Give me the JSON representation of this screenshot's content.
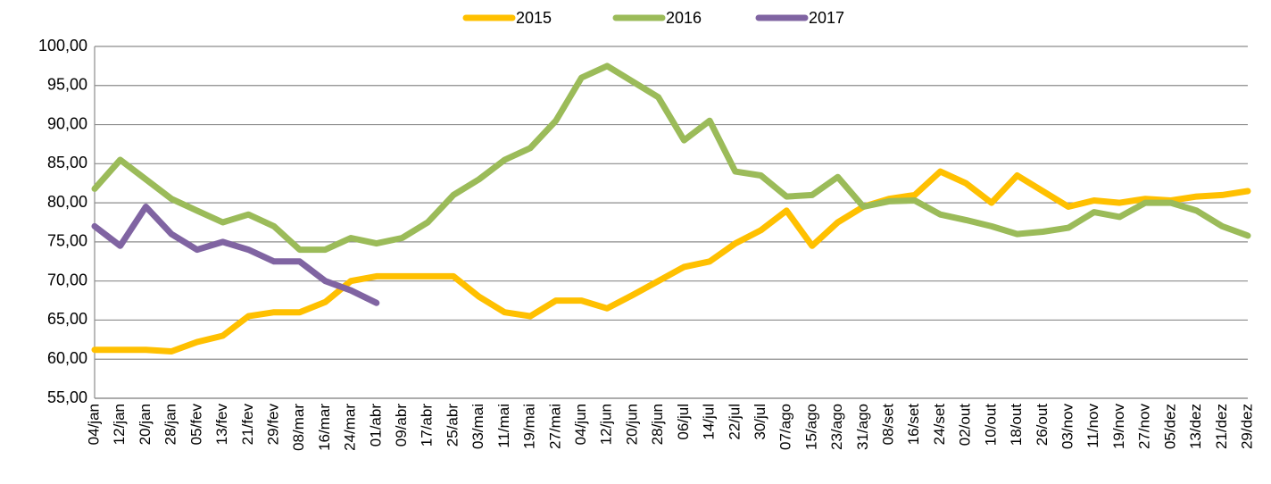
{
  "chart_data": {
    "type": "line",
    "categories": [
      "04/jan",
      "12/jan",
      "20/jan",
      "28/jan",
      "05/fev",
      "13/fev",
      "21/fev",
      "29/fev",
      "08/mar",
      "16/mar",
      "24/mar",
      "01/abr",
      "09/abr",
      "17/abr",
      "25/abr",
      "03/mai",
      "11/mai",
      "19/mai",
      "27/mai",
      "04/jun",
      "12/jun",
      "20/jun",
      "28/jun",
      "06/jul",
      "14/jul",
      "22/jul",
      "30/jul",
      "07/ago",
      "15/ago",
      "23/ago",
      "31/ago",
      "08/set",
      "16/set",
      "24/set",
      "02/out",
      "10/out",
      "18/out",
      "26/out",
      "03/nov",
      "11/nov",
      "19/nov",
      "27/nov",
      "05/dez",
      "13/dez",
      "21/dez",
      "29/dez"
    ],
    "series": [
      {
        "name": "2015",
        "color": "#FFC000",
        "values": [
          61.2,
          61.2,
          61.2,
          61.0,
          62.2,
          63.0,
          65.5,
          66.0,
          66.0,
          67.3,
          70.0,
          70.6,
          70.6,
          70.6,
          70.6,
          68.0,
          66.0,
          65.5,
          67.5,
          67.5,
          66.5,
          68.2,
          70.0,
          71.8,
          72.5,
          74.8,
          76.5,
          79.0,
          74.5,
          77.5,
          79.5,
          80.5,
          81.0,
          84.0,
          82.5,
          80.0,
          83.5,
          81.5,
          79.5,
          80.3,
          80.0,
          80.5,
          80.3,
          80.8,
          81.0,
          81.5
        ]
      },
      {
        "name": "2016",
        "color": "#9BBB59",
        "values": [
          81.8,
          85.5,
          83.0,
          80.5,
          79.0,
          77.5,
          78.5,
          77.0,
          74.0,
          74.0,
          75.5,
          74.8,
          75.5,
          77.5,
          81.0,
          83.0,
          85.5,
          87.0,
          90.5,
          96.0,
          97.5,
          95.5,
          93.5,
          88.0,
          90.5,
          84.0,
          83.5,
          80.8,
          81.0,
          83.3,
          79.5,
          80.2,
          80.3,
          78.5,
          77.8,
          77.0,
          76.0,
          76.3,
          76.8,
          78.8,
          78.2,
          80.0,
          80.0,
          79.0,
          77.0,
          75.8
        ]
      },
      {
        "name": "2017",
        "color": "#8064A2",
        "values": [
          77.0,
          74.5,
          79.5,
          76.0,
          74.0,
          75.0,
          74.0,
          72.5,
          72.5,
          70.0,
          68.8,
          67.2,
          null,
          null,
          null,
          null,
          null,
          null,
          null,
          null,
          null,
          null,
          null,
          null,
          null,
          null,
          null,
          null,
          null,
          null,
          null,
          null,
          null,
          null,
          null,
          null,
          null,
          null,
          null,
          null,
          null,
          null,
          null,
          null,
          null,
          null
        ]
      }
    ],
    "ylim": [
      55,
      100
    ],
    "yticks": [
      {
        "value": 55,
        "label": "55,00"
      },
      {
        "value": 60,
        "label": "60,00"
      },
      {
        "value": 65,
        "label": "65,00"
      },
      {
        "value": 70,
        "label": "70,00"
      },
      {
        "value": 75,
        "label": "75,00"
      },
      {
        "value": 80,
        "label": "80,00"
      },
      {
        "value": 85,
        "label": "85,00"
      },
      {
        "value": 90,
        "label": "90,00"
      },
      {
        "value": 95,
        "label": "95,00"
      },
      {
        "value": 100,
        "label": "100,00"
      }
    ],
    "grid": true
  }
}
